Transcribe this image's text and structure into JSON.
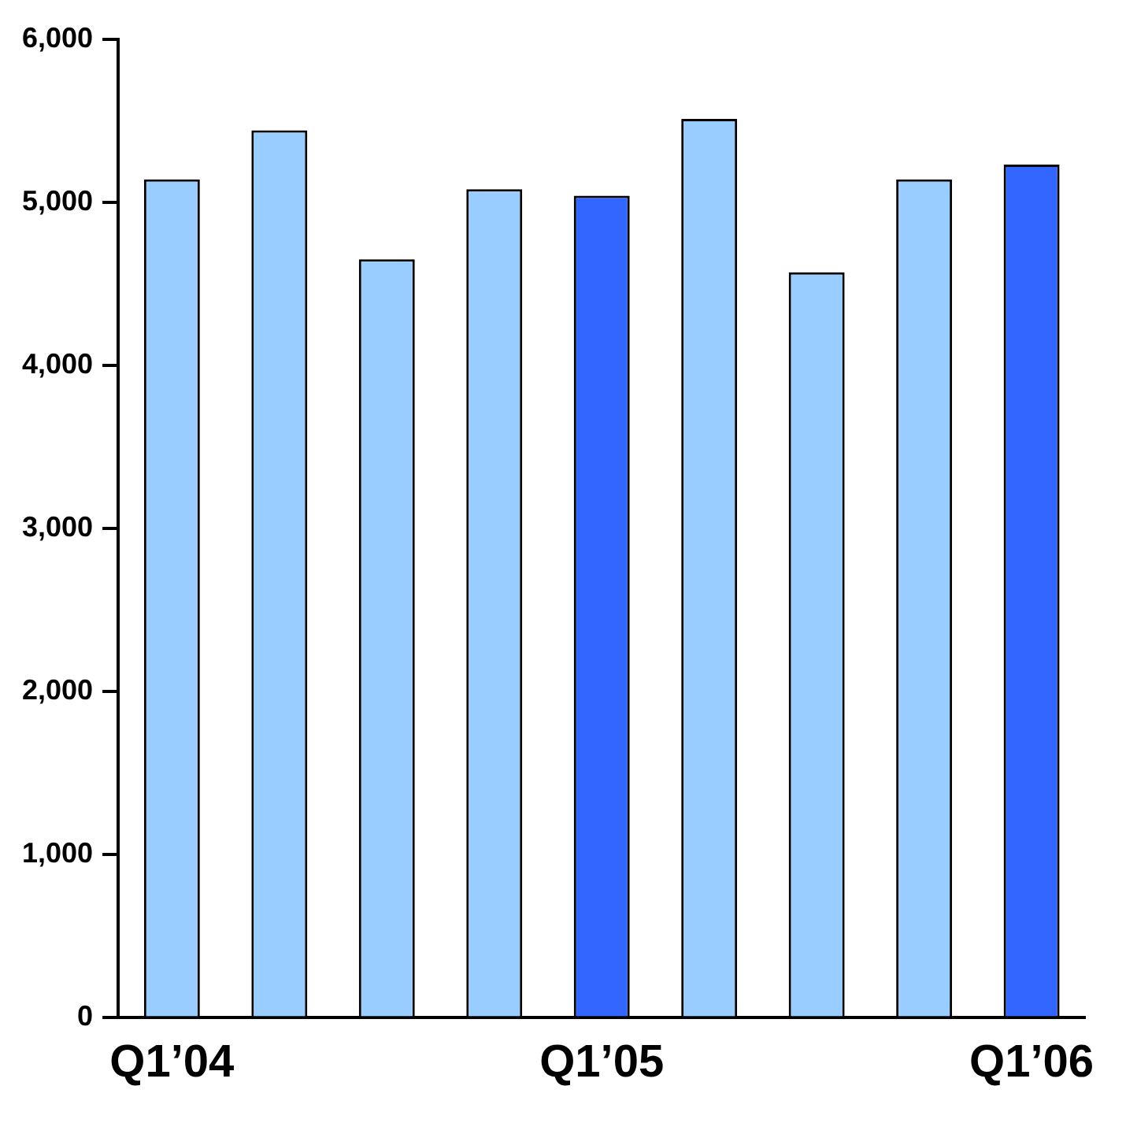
{
  "chart_data": {
    "type": "bar",
    "categories": [
      "Q1’04",
      null,
      null,
      null,
      "Q1’05",
      null,
      null,
      null,
      "Q1’06"
    ],
    "values": [
      5140,
      5440,
      4650,
      5080,
      5040,
      5510,
      4570,
      5140,
      5230
    ],
    "colors": [
      "#99ccff",
      "#99ccff",
      "#99ccff",
      "#99ccff",
      "#3366ff",
      "#99ccff",
      "#99ccff",
      "#99ccff",
      "#3366ff"
    ],
    "ylim": [
      0,
      6000
    ],
    "yticks": [
      0,
      {
        "value": 1000,
        "label": "1,000"
      },
      {
        "value": 2000,
        "label": "2,000"
      },
      {
        "value": 3000,
        "label": "3,000"
      },
      {
        "value": 4000,
        "label": "4,000"
      },
      {
        "value": 5000,
        "label": "5,000"
      },
      {
        "value": 6000,
        "label": "6,000"
      }
    ],
    "grid": false,
    "legend": false
  }
}
